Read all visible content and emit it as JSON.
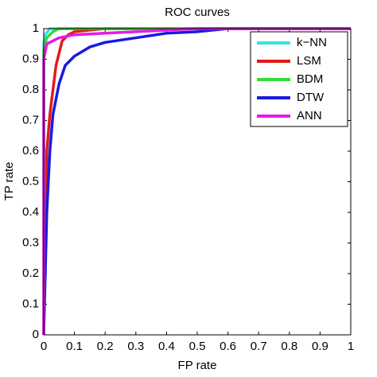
{
  "chart_data": {
    "type": "line",
    "title": "ROC curves",
    "x_label": "FP rate",
    "y_label": "TP rate",
    "xlim": [
      0,
      1
    ],
    "ylim": [
      0,
      1
    ],
    "xticks": [
      0,
      0.1,
      0.2,
      0.3,
      0.4,
      0.5,
      0.6,
      0.7,
      0.8,
      0.9,
      1
    ],
    "yticks": [
      0,
      0.1,
      0.2,
      0.3,
      0.4,
      0.5,
      0.6,
      0.7,
      0.8,
      0.9,
      1
    ],
    "grid": false,
    "legend": "upper right",
    "series": [
      {
        "name": "k−NN",
        "color": "#33e5e5",
        "x": [
          0,
          0,
          0.005,
          0.02,
          1
        ],
        "values": [
          0,
          0.95,
          0.98,
          1,
          1
        ]
      },
      {
        "name": "LSM",
        "color": "#e21a1a",
        "x": [
          0,
          0.01,
          0.02,
          0.04,
          0.06,
          0.08,
          0.1,
          0.2,
          1
        ],
        "values": [
          0,
          0.6,
          0.72,
          0.88,
          0.96,
          0.98,
          0.99,
          1,
          1
        ]
      },
      {
        "name": "BDM",
        "color": "#33dd33",
        "x": [
          0,
          0,
          0.01,
          0.03,
          0.05,
          1
        ],
        "values": [
          0,
          0.93,
          0.97,
          0.99,
          1,
          1
        ]
      },
      {
        "name": "DTW",
        "color": "#1a1ae0",
        "x": [
          0,
          0.01,
          0.02,
          0.03,
          0.05,
          0.07,
          0.1,
          0.15,
          0.2,
          0.3,
          0.4,
          0.5,
          0.6,
          1
        ],
        "values": [
          0,
          0.4,
          0.6,
          0.72,
          0.82,
          0.88,
          0.91,
          0.94,
          0.955,
          0.97,
          0.985,
          0.99,
          1,
          1
        ]
      },
      {
        "name": "ANN",
        "color": "#e61ae6",
        "x": [
          0,
          0,
          0.01,
          0.05,
          0.1,
          0.3,
          0.5,
          1
        ],
        "values": [
          0,
          0.9,
          0.95,
          0.97,
          0.98,
          0.99,
          1,
          1
        ]
      }
    ]
  }
}
